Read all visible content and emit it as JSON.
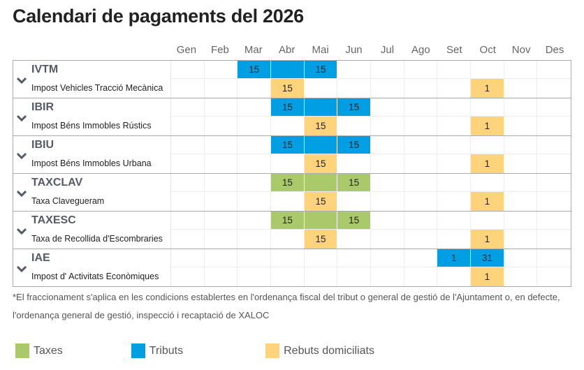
{
  "title": "Calendari de pagaments del 2026",
  "months": [
    "Gen",
    "Feb",
    "Mar",
    "Abr",
    "Mai",
    "Jun",
    "Jul",
    "Ago",
    "Set",
    "Oct",
    "Nov",
    "Des"
  ],
  "colors": {
    "taxes": "#a9c96a",
    "tributs": "#009fe3",
    "rebuts": "#fdd37c"
  },
  "groups": [
    {
      "code": "IVTM",
      "name": "Impost Vehicles Tracció Mecànica",
      "row1": [
        {
          "m": 2,
          "type": "tributs",
          "text": "15"
        },
        {
          "m": 3,
          "type": "tributs",
          "text": ""
        },
        {
          "m": 4,
          "type": "tributs",
          "text": "15"
        }
      ],
      "row2": [
        {
          "m": 3,
          "type": "rebuts",
          "text": "15"
        },
        {
          "m": 9,
          "type": "rebuts",
          "text": "1"
        }
      ]
    },
    {
      "code": "IBIR",
      "name": "Impost Béns Immobles Rústics",
      "row1": [
        {
          "m": 3,
          "type": "tributs",
          "text": "15"
        },
        {
          "m": 4,
          "type": "tributs",
          "text": ""
        },
        {
          "m": 5,
          "type": "tributs",
          "text": "15"
        }
      ],
      "row2": [
        {
          "m": 4,
          "type": "rebuts",
          "text": "15"
        },
        {
          "m": 9,
          "type": "rebuts",
          "text": "1"
        }
      ]
    },
    {
      "code": "IBIU",
      "name": "Impost Béns Immobles Urbana",
      "row1": [
        {
          "m": 3,
          "type": "tributs",
          "text": "15"
        },
        {
          "m": 4,
          "type": "tributs",
          "text": ""
        },
        {
          "m": 5,
          "type": "tributs",
          "text": "15"
        }
      ],
      "row2": [
        {
          "m": 4,
          "type": "rebuts",
          "text": "15"
        },
        {
          "m": 9,
          "type": "rebuts",
          "text": "1"
        }
      ]
    },
    {
      "code": "TAXCLAV",
      "name": "Taxa Clavegueram",
      "row1": [
        {
          "m": 3,
          "type": "taxes",
          "text": "15"
        },
        {
          "m": 4,
          "type": "taxes",
          "text": ""
        },
        {
          "m": 5,
          "type": "taxes",
          "text": "15"
        }
      ],
      "row2": [
        {
          "m": 4,
          "type": "rebuts",
          "text": "15"
        },
        {
          "m": 9,
          "type": "rebuts",
          "text": "1"
        }
      ]
    },
    {
      "code": "TAXESC",
      "name": "Taxa de Recollida d'Escombraries",
      "row1": [
        {
          "m": 3,
          "type": "taxes",
          "text": "15"
        },
        {
          "m": 4,
          "type": "taxes",
          "text": ""
        },
        {
          "m": 5,
          "type": "taxes",
          "text": "15"
        }
      ],
      "row2": [
        {
          "m": 4,
          "type": "rebuts",
          "text": "15"
        },
        {
          "m": 9,
          "type": "rebuts",
          "text": "1"
        }
      ]
    },
    {
      "code": "IAE",
      "name": "Impost d' Activitats Econòmiques",
      "row1": [
        {
          "m": 8,
          "type": "tributs",
          "text": "1"
        },
        {
          "m": 9,
          "type": "tributs",
          "text": "31"
        }
      ],
      "row2": [
        {
          "m": 9,
          "type": "rebuts",
          "text": "1"
        }
      ]
    }
  ],
  "note": "*El fraccionament s'aplica en les condicions establertes en l'ordenança fiscal del tribut o general de gestió de l'Ajuntament o, en defecte, l'ordenança general de gestió, inspecció i recaptació de XALOC",
  "legend": [
    {
      "type": "taxes",
      "label": "Taxes"
    },
    {
      "type": "tributs",
      "label": "Tributs"
    },
    {
      "type": "rebuts",
      "label": "Rebuts domiciliats"
    }
  ]
}
